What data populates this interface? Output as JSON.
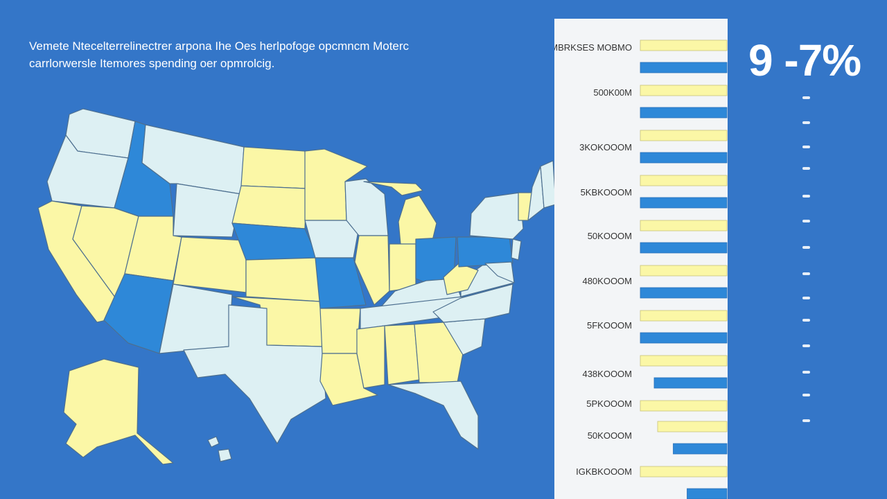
{
  "intro_text": "Vemete Ntecelterrelinectrer arpona Ihe Oes herlpofoge opcmncm Moterc carrlorwersle Itemores spending oer opmrolcig.",
  "headline_value": "9 ‑7%",
  "colors": {
    "background": "#3476c8",
    "panel": "#f3f5f7",
    "high": "#2e88d8",
    "mid": "#fbf7a6",
    "low": "#ddf0f3",
    "bar_yellow": "#fbf7a6",
    "bar_blue": "#2e88d8"
  },
  "chart_data": [
    {
      "type": "map",
      "title": "",
      "regions": [
        {
          "name": "Washington",
          "category": "low"
        },
        {
          "name": "Oregon",
          "category": "low"
        },
        {
          "name": "California",
          "category": "mid"
        },
        {
          "name": "Nevada",
          "category": "mid"
        },
        {
          "name": "Idaho",
          "category": "high"
        },
        {
          "name": "Montana",
          "category": "low"
        },
        {
          "name": "Wyoming",
          "category": "low"
        },
        {
          "name": "Utah",
          "category": "mid"
        },
        {
          "name": "Arizona",
          "category": "high"
        },
        {
          "name": "Colorado",
          "category": "mid"
        },
        {
          "name": "New Mexico",
          "category": "low"
        },
        {
          "name": "North Dakota",
          "category": "mid"
        },
        {
          "name": "South Dakota",
          "category": "mid"
        },
        {
          "name": "Nebraska",
          "category": "high"
        },
        {
          "name": "Kansas",
          "category": "mid"
        },
        {
          "name": "Oklahoma",
          "category": "mid"
        },
        {
          "name": "Texas",
          "category": "low"
        },
        {
          "name": "Minnesota",
          "category": "mid"
        },
        {
          "name": "Iowa",
          "category": "low"
        },
        {
          "name": "Missouri",
          "category": "high"
        },
        {
          "name": "Arkansas",
          "category": "mid"
        },
        {
          "name": "Louisiana",
          "category": "mid"
        },
        {
          "name": "Wisconsin",
          "category": "low"
        },
        {
          "name": "Illinois",
          "category": "mid"
        },
        {
          "name": "Michigan",
          "category": "mid"
        },
        {
          "name": "Indiana",
          "category": "mid"
        },
        {
          "name": "Ohio",
          "category": "high"
        },
        {
          "name": "Kentucky",
          "category": "low"
        },
        {
          "name": "Tennessee",
          "category": "low"
        },
        {
          "name": "Mississippi",
          "category": "mid"
        },
        {
          "name": "Alabama",
          "category": "mid"
        },
        {
          "name": "Georgia",
          "category": "mid"
        },
        {
          "name": "Florida",
          "category": "low"
        },
        {
          "name": "South Carolina",
          "category": "low"
        },
        {
          "name": "North Carolina",
          "category": "low"
        },
        {
          "name": "Virginia",
          "category": "low"
        },
        {
          "name": "West Virginia",
          "category": "mid"
        },
        {
          "name": "Pennsylvania",
          "category": "high"
        },
        {
          "name": "New York",
          "category": "low"
        },
        {
          "name": "Vermont",
          "category": "mid"
        },
        {
          "name": "New Hampshire",
          "category": "low"
        },
        {
          "name": "Maine",
          "category": "low"
        },
        {
          "name": "Maryland",
          "category": "low"
        },
        {
          "name": "New Jersey",
          "category": "low"
        },
        {
          "name": "Alaska",
          "category": "mid"
        },
        {
          "name": "Hawaii",
          "category": "low"
        }
      ]
    },
    {
      "type": "bar",
      "orientation": "horizontal",
      "title": "",
      "categories": [
        "NMBRKSES MOBMO",
        "500K00M",
        "3KOKOOOM",
        "5KBKOOOM",
        "50KOOOM",
        "480KOOOM",
        "5FKOOOM",
        "438KOOOM",
        "5PKOOOM",
        "50KOOOM",
        "IGKBKOOOM"
      ],
      "series": [
        {
          "values": [
            100,
            100,
            100,
            100,
            100,
            100,
            100,
            100,
            100,
            80,
            100
          ]
        },
        {
          "values": [
            100,
            100,
            100,
            100,
            100,
            100,
            100,
            84,
            0,
            62,
            46
          ]
        }
      ],
      "xlim": [
        0,
        100
      ]
    }
  ]
}
